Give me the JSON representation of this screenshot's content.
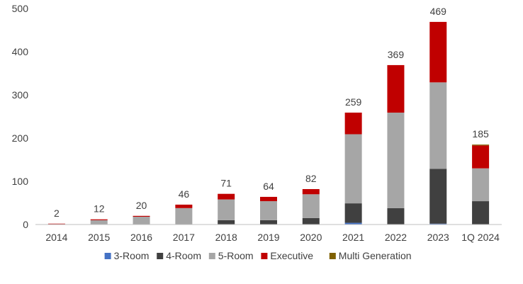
{
  "chart_data": {
    "type": "bar",
    "stacked": true,
    "categories": [
      "2014",
      "2015",
      "2016",
      "2017",
      "2018",
      "2019",
      "2020",
      "2021",
      "2022",
      "2023",
      "1Q 2024"
    ],
    "ylim": [
      0,
      500
    ],
    "yticks": [
      0,
      100,
      200,
      300,
      400,
      500
    ],
    "grid": false,
    "legend_position": "bottom",
    "totals": [
      2,
      12,
      20,
      46,
      71,
      64,
      82,
      259,
      369,
      469,
      185
    ],
    "series": [
      {
        "name": "3-Room",
        "color": "#4472C4",
        "values": [
          0,
          0,
          0,
          0,
          0,
          0,
          0,
          4,
          0,
          2,
          0
        ]
      },
      {
        "name": "4-Room",
        "color": "#404040",
        "values": [
          0,
          0,
          0,
          0,
          10,
          10,
          15,
          45,
          38,
          127,
          54
        ]
      },
      {
        "name": "5-Room",
        "color": "#A6A6A6",
        "values": [
          1,
          10,
          18,
          38,
          48,
          44,
          55,
          160,
          221,
          200,
          76
        ]
      },
      {
        "name": "Executive",
        "color": "#C00000",
        "values": [
          1,
          2,
          2,
          8,
          13,
          10,
          12,
          50,
          110,
          140,
          53
        ]
      },
      {
        "name": "Multi Generation",
        "color": "#7F6000",
        "values": [
          0,
          0,
          0,
          0,
          0,
          0,
          0,
          0,
          0,
          0,
          2
        ]
      }
    ]
  }
}
